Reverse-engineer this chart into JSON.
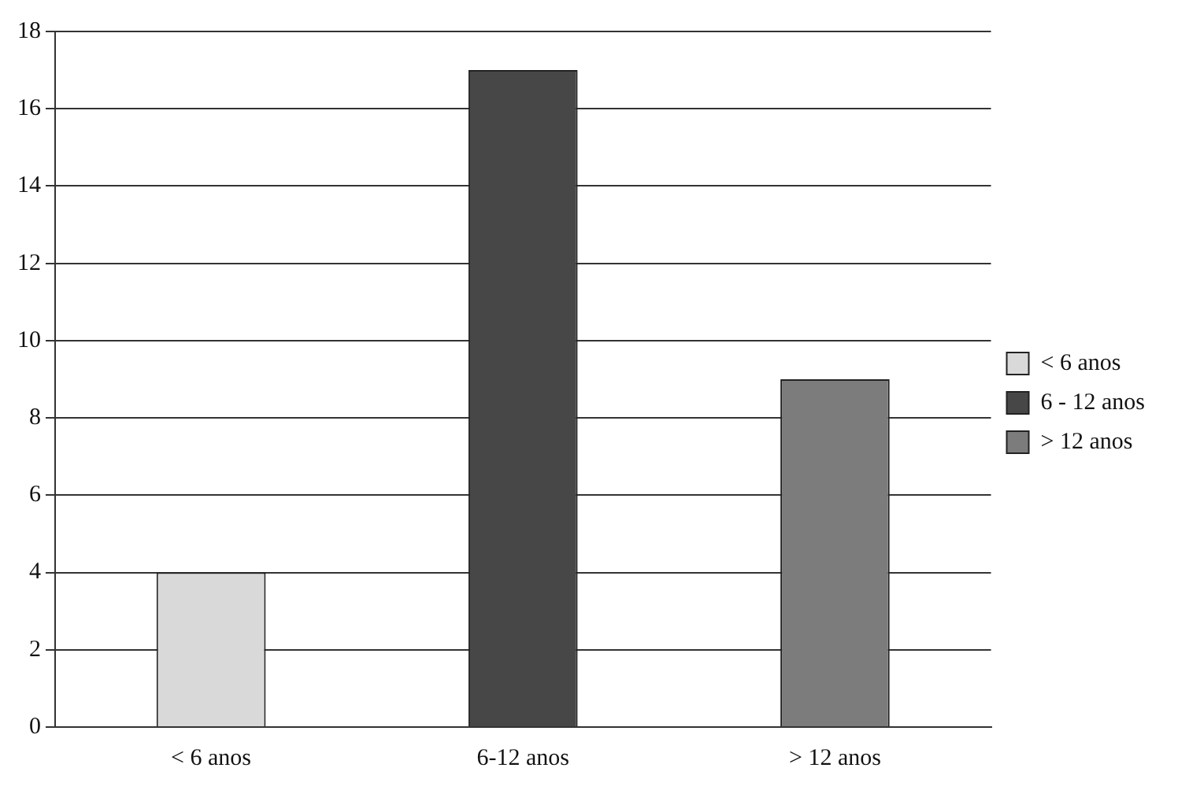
{
  "chart_data": {
    "type": "bar",
    "categories": [
      "< 6 anos",
      "6-12 anos",
      "> 12 anos"
    ],
    "series": [
      {
        "name": "< 6 anos",
        "color": "#d9d9d9",
        "values": [
          4,
          null,
          null
        ]
      },
      {
        "name": "6 - 12 anos",
        "color": "#474747",
        "values": [
          null,
          17,
          null
        ]
      },
      {
        "name": "> 12 anos",
        "color": "#7c7c7c",
        "values": [
          null,
          null,
          9
        ]
      }
    ],
    "ylim": [
      0,
      18
    ],
    "yticks": [
      0,
      2,
      4,
      6,
      8,
      10,
      12,
      14,
      16,
      18
    ],
    "grid": "y",
    "legend": "right"
  }
}
